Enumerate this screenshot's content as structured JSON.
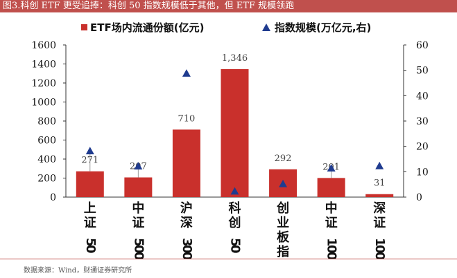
{
  "header": {
    "title": "图3.科创 ETF 更受追捧：科创 50 指数规模低于其他，但 ETF 规模领跑"
  },
  "source": "数据来源：Wind，财通证券研究所",
  "colors": {
    "bar": "#c9302c",
    "marker": "#1f3b8f",
    "header": "#c0504d"
  },
  "chart_data": {
    "type": "bar",
    "title": "",
    "categories": [
      "上证50",
      "中证500",
      "沪深300",
      "科创50",
      "创业板指",
      "中证1000",
      "深证100"
    ],
    "series": [
      {
        "name": "ETF场内流通份额(亿元)",
        "type": "bar",
        "axis": "left",
        "values": [
          271,
          207,
          710,
          1346,
          292,
          201,
          31
        ],
        "labels": [
          "271",
          "207",
          "710",
          "1,346",
          "292",
          "201",
          "31"
        ]
      },
      {
        "name": "指数规模(万亿元,右)",
        "type": "scatter",
        "marker": "triangle",
        "axis": "right",
        "values": [
          18.2,
          12.2,
          48.8,
          2.3,
          5.2,
          11.4,
          12.3
        ]
      }
    ],
    "y_left": {
      "min": 0,
      "max": 1600,
      "ticks": [
        0,
        200,
        400,
        600,
        800,
        1000,
        1200,
        1400,
        1600
      ]
    },
    "y_right": {
      "min": 0,
      "max": 60,
      "ticks": [
        0,
        10,
        20,
        30,
        40,
        50,
        60
      ]
    },
    "grid": false,
    "legend": "top"
  }
}
